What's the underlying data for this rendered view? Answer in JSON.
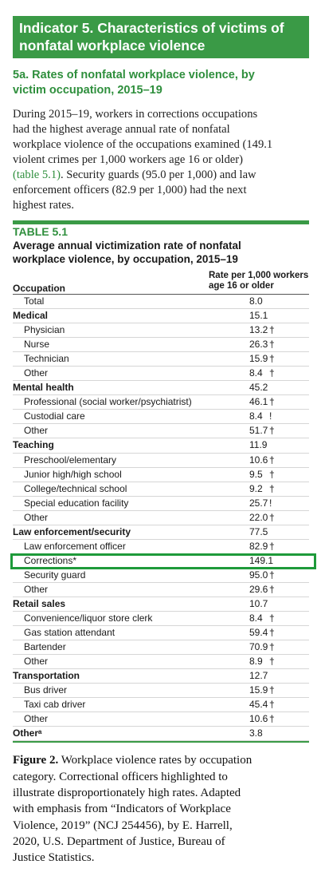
{
  "banner": {
    "line1": "Indicator 5. Characteristics of victims of",
    "line2": "nonfatal workplace violence"
  },
  "subhead": {
    "line1": "5a. Rates of nonfatal workplace violence, by",
    "line2": "victim occupation, 2015–19"
  },
  "intro": {
    "l1": "During 2015–19, workers in corrections occupations",
    "l2": "had the highest average annual rate of nonfatal",
    "l3": "workplace violence of the occupations examined (149.1",
    "l4": "violent crimes per 1,000 workers age 16 or older)",
    "l5_ref": "(table 5.1)",
    "l5_rest": ". Security guards (95.0 per 1,000) and law",
    "l6": "enforcement officers (82.9 per 1,000) had the next",
    "l7": "highest rates."
  },
  "table": {
    "label": "TABLE 5.1",
    "title_l1": "Average annual victimization rate of nonfatal",
    "title_l2": "workplace violence, by occupation, 2015–19",
    "col_occupation": "Occupation",
    "col_rate_l1": "Rate per 1,000 workers",
    "col_rate_l2": "age 16 or older",
    "rows": [
      {
        "label": "Total",
        "value": "8.0",
        "flag": "",
        "kind": "sub"
      },
      {
        "label": "Medical",
        "value": "15.1",
        "flag": "",
        "kind": "cat"
      },
      {
        "label": "Physician",
        "value": "13.2",
        "flag": "†",
        "kind": "sub"
      },
      {
        "label": "Nurse",
        "value": "26.3",
        "flag": "†",
        "kind": "sub"
      },
      {
        "label": "Technician",
        "value": "15.9",
        "flag": "†",
        "kind": "sub"
      },
      {
        "label": "Other",
        "value": "8.4",
        "flag": "†",
        "kind": "sub"
      },
      {
        "label": "Mental health",
        "value": "45.2",
        "flag": "",
        "kind": "cat"
      },
      {
        "label": "Professional (social worker/psychiatrist)",
        "value": "46.1",
        "flag": "†",
        "kind": "sub"
      },
      {
        "label": "Custodial care",
        "value": "8.4",
        "flag": "!",
        "kind": "sub"
      },
      {
        "label": "Other",
        "value": "51.7",
        "flag": "†",
        "kind": "sub"
      },
      {
        "label": "Teaching",
        "value": "11.9",
        "flag": "",
        "kind": "cat"
      },
      {
        "label": "Preschool/elementary",
        "value": "10.6",
        "flag": "†",
        "kind": "sub"
      },
      {
        "label": "Junior high/high school",
        "value": "9.5",
        "flag": "†",
        "kind": "sub"
      },
      {
        "label": "College/technical school",
        "value": "9.2",
        "flag": "†",
        "kind": "sub"
      },
      {
        "label": "Special education facility",
        "value": "25.7",
        "flag": "!",
        "kind": "sub"
      },
      {
        "label": "Other",
        "value": "22.0",
        "flag": "†",
        "kind": "sub"
      },
      {
        "label": "Law enforcement/security",
        "value": "77.5",
        "flag": "",
        "kind": "cat"
      },
      {
        "label": "Law enforcement officer",
        "value": "82.9",
        "flag": "†",
        "kind": "sub"
      },
      {
        "label": "Corrections*",
        "value": "149.1",
        "flag": "",
        "kind": "sub",
        "highlight": true
      },
      {
        "label": "Security guard",
        "value": "95.0",
        "flag": "†",
        "kind": "sub"
      },
      {
        "label": "Other",
        "value": "29.6",
        "flag": "†",
        "kind": "sub"
      },
      {
        "label": "Retail sales",
        "value": "10.7",
        "flag": "",
        "kind": "cat"
      },
      {
        "label": "Convenience/liquor store clerk",
        "value": "8.4",
        "flag": "†",
        "kind": "sub"
      },
      {
        "label": "Gas station attendant",
        "value": "59.4",
        "flag": "†",
        "kind": "sub"
      },
      {
        "label": "Bartender",
        "value": "70.9",
        "flag": "†",
        "kind": "sub"
      },
      {
        "label": "Other",
        "value": "8.9",
        "flag": "†",
        "kind": "sub"
      },
      {
        "label": "Transportation",
        "value": "12.7",
        "flag": "",
        "kind": "cat"
      },
      {
        "label": "Bus driver",
        "value": "15.9",
        "flag": "†",
        "kind": "sub"
      },
      {
        "label": "Taxi cab driver",
        "value": "45.4",
        "flag": "†",
        "kind": "sub"
      },
      {
        "label": "Other",
        "value": "10.6",
        "flag": "†",
        "kind": "sub"
      },
      {
        "label": "Otherᵃ",
        "value": "3.8",
        "flag": "",
        "kind": "cat"
      }
    ]
  },
  "caption": {
    "fig": "Figure 2.",
    "l1_rest": " Workplace violence rates by occupation",
    "l2": "category. Correctional officers highlighted to",
    "l3": "illustrate disproportionately high rates. Adapted",
    "l4": "with emphasis from “Indicators of Workplace",
    "l5": "Violence, 2019” (NCJ 254456), by E. Harrell,",
    "l6": "2020, U.S. Department of Justice, Bureau of",
    "l7": "Justice Statistics."
  },
  "colors": {
    "accent": "#3a9a46",
    "highlight_outline": "#1e9a3a",
    "text": "#1a1a1a"
  }
}
